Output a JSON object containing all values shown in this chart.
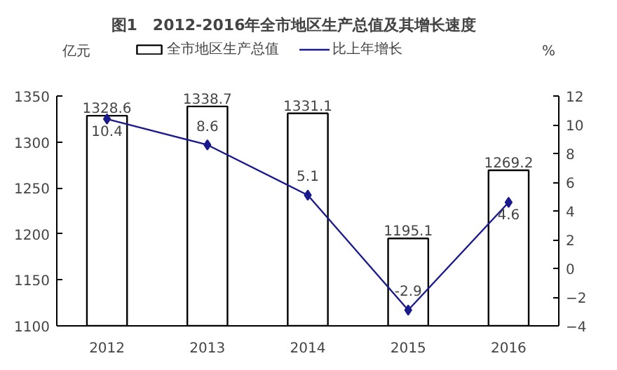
{
  "chart_data": {
    "type": "bar",
    "title": "图1　2012-2016年全市地区生产总值及其增长速度",
    "categories": [
      "2012",
      "2013",
      "2014",
      "2015",
      "2016"
    ],
    "ylabel": "亿元",
    "y2label": "%",
    "series": [
      {
        "name": "全市地区生产总值",
        "color": "#ffffff",
        "values": [
          1328.6,
          1338.7,
          1331.1,
          1195.1,
          1269.2
        ]
      },
      {
        "name": "比上年增长",
        "type": "line",
        "axis": "y2",
        "color": "#1a1a8c",
        "marker": "diamond",
        "values": [
          10.4,
          8.6,
          5.1,
          -2.9,
          4.6
        ]
      }
    ],
    "ylim": [
      1100,
      1350
    ],
    "yticks": [
      1100,
      1150,
      1200,
      1250,
      1300,
      1350
    ],
    "y2lim": [
      -4,
      12
    ],
    "y2ticks": [
      -4,
      -2,
      0,
      2,
      4,
      6,
      8,
      10,
      12
    ],
    "data_labels": true,
    "legend": "top",
    "grid": false
  }
}
